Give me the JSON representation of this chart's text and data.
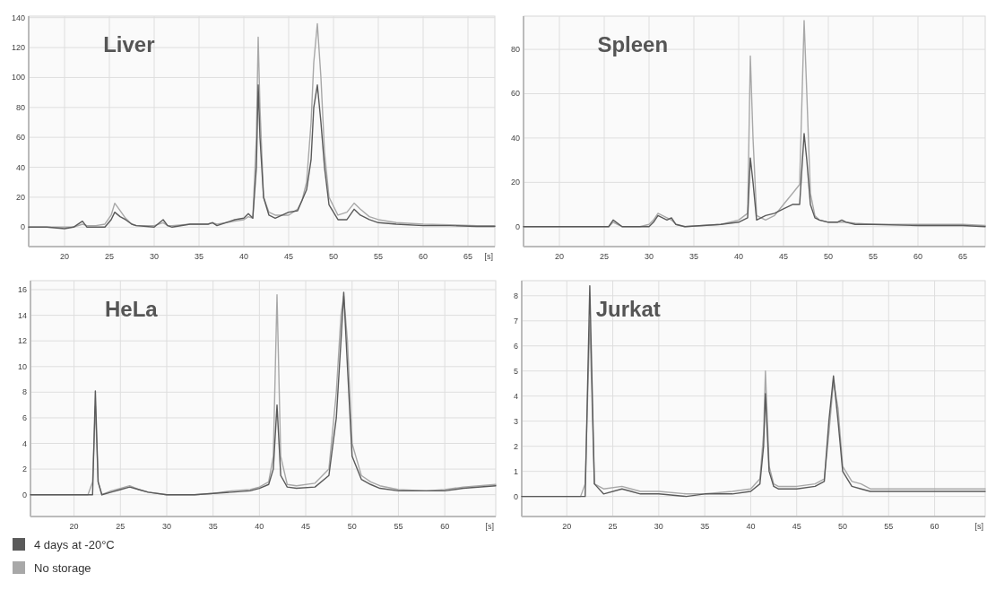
{
  "chart_data": [
    {
      "type": "line",
      "title": "Liver",
      "grid": true,
      "xlim": [
        16,
        68
      ],
      "ylim": [
        -13,
        141
      ],
      "xlabel": "[s]",
      "xticks": [
        20,
        25,
        30,
        35,
        40,
        45,
        50,
        55,
        60,
        65
      ],
      "yticks": [
        0,
        20,
        40,
        60,
        80,
        100,
        120,
        140
      ],
      "x": [
        16,
        18,
        20,
        21,
        22,
        22.5,
        23.5,
        24.5,
        25.2,
        25.6,
        26.2,
        26.8,
        27.5,
        28,
        30,
        31,
        31.5,
        32,
        34,
        36,
        36.5,
        37,
        39,
        40,
        40.5,
        41,
        41.4,
        41.6,
        41.8,
        42.2,
        42.8,
        43.5,
        45,
        46,
        46.5,
        47,
        47.5,
        47.8,
        48.2,
        48.6,
        49,
        49.5,
        50.5,
        51.5,
        52.3,
        53,
        54,
        55,
        57,
        60,
        63,
        66,
        68
      ],
      "series": [
        {
          "color": "#a8a8a8",
          "values": [
            0,
            0,
            0,
            0,
            2,
            1,
            1,
            2,
            8,
            16,
            11,
            6,
            2,
            1,
            1,
            3,
            1,
            1,
            2,
            2,
            3,
            2,
            4,
            5,
            7,
            6,
            60,
            127,
            80,
            20,
            10,
            8,
            8,
            12,
            18,
            30,
            70,
            110,
            136,
            100,
            50,
            20,
            8,
            10,
            16,
            12,
            7,
            5,
            3,
            2,
            1.5,
            1,
            1
          ]
        },
        {
          "color": "#5a5a5a",
          "values": [
            0,
            0,
            -1,
            0,
            4,
            0,
            0,
            0,
            5,
            10,
            7,
            5,
            2,
            1,
            0,
            5,
            1,
            0,
            2,
            2,
            3,
            1,
            5,
            6,
            9,
            6,
            40,
            95,
            60,
            20,
            8,
            6,
            10,
            11,
            18,
            25,
            45,
            80,
            95,
            70,
            40,
            15,
            5,
            5,
            12,
            8,
            5,
            3,
            2,
            1,
            1,
            0.5,
            0.5
          ]
        }
      ]
    },
    {
      "type": "line",
      "title": "Spleen",
      "grid": true,
      "xlim": [
        16,
        67.5
      ],
      "ylim": [
        -9,
        95
      ],
      "xticks": [
        20,
        25,
        30,
        35,
        40,
        45,
        50,
        55,
        60,
        65
      ],
      "yticks": [
        0,
        20,
        40,
        60,
        80
      ],
      "x": [
        16,
        18,
        20,
        24,
        25.5,
        26,
        27,
        29,
        30,
        30.5,
        31,
        32,
        32.5,
        33,
        34,
        36,
        38,
        40,
        41,
        41.3,
        41.6,
        42,
        43,
        44,
        45,
        46,
        46.8,
        47.3,
        47.6,
        48,
        48.5,
        49,
        50,
        51,
        51.5,
        52,
        53,
        55,
        60,
        65,
        67.5
      ],
      "series": [
        {
          "color": "#a8a8a8",
          "values": [
            0,
            0,
            0,
            0,
            0,
            2,
            0,
            0,
            1,
            3,
            6,
            4,
            3,
            1,
            0,
            0.5,
            1,
            3,
            6,
            77,
            40,
            5,
            3,
            5,
            10,
            15,
            19,
            93,
            60,
            15,
            5,
            3,
            2,
            2,
            2,
            2,
            1.5,
            1,
            1,
            1,
            0.5
          ]
        },
        {
          "color": "#5a5a5a",
          "values": [
            0,
            0,
            0,
            0,
            0,
            3,
            0,
            0,
            0,
            2,
            5,
            3,
            4,
            1,
            0,
            0.5,
            1,
            2,
            4,
            31,
            20,
            3,
            5,
            6,
            8,
            10,
            10,
            42,
            30,
            10,
            4,
            3,
            2,
            2,
            3,
            2,
            1,
            1,
            0.5,
            0.5,
            0
          ]
        }
      ]
    },
    {
      "type": "line",
      "title": "HeLa",
      "grid": true,
      "legend": "bottom left",
      "xlim": [
        15.3,
        65.5
      ],
      "ylim": [
        -1.7,
        16.7
      ],
      "xlabel": "[s]",
      "xticks": [
        20,
        25,
        30,
        35,
        40,
        45,
        50,
        55,
        60
      ],
      "yticks": [
        0,
        2,
        4,
        6,
        8,
        10,
        12,
        14,
        16
      ],
      "x": [
        15.3,
        18,
        20,
        21.5,
        22,
        22.3,
        22.6,
        23,
        24,
        25,
        26,
        27,
        28,
        30,
        33,
        35,
        37,
        39,
        40,
        41,
        41.5,
        41.9,
        42.3,
        43,
        44,
        46,
        47.5,
        48.3,
        48.8,
        49.1,
        49.5,
        50,
        51,
        52,
        53,
        55,
        58,
        60,
        62,
        65.5
      ],
      "series": [
        {
          "name": "No storage",
          "color": "#a8a8a8",
          "values": [
            0,
            0,
            0,
            0,
            1,
            6.9,
            1,
            0,
            0.3,
            0.5,
            0.7,
            0.4,
            0.2,
            0,
            0,
            0.1,
            0.3,
            0.4,
            0.6,
            1,
            3,
            15.6,
            3,
            0.8,
            0.7,
            0.9,
            2,
            8,
            14,
            15.5,
            12,
            4,
            1.5,
            1,
            0.7,
            0.4,
            0.3,
            0.4,
            0.6,
            0.8
          ]
        },
        {
          "name": "4 days at -20°C",
          "color": "#5a5a5a",
          "values": [
            0,
            0,
            0,
            0,
            0,
            8.1,
            1,
            0,
            0.2,
            0.4,
            0.6,
            0.4,
            0.2,
            0,
            0,
            0.1,
            0.2,
            0.3,
            0.5,
            0.8,
            2,
            7,
            1.5,
            0.6,
            0.5,
            0.6,
            1.5,
            6,
            12,
            15.8,
            10,
            3,
            1.2,
            0.8,
            0.5,
            0.3,
            0.3,
            0.3,
            0.5,
            0.7
          ]
        }
      ]
    },
    {
      "type": "line",
      "title": "Jurkat",
      "grid": true,
      "xlim": [
        15.1,
        65.5
      ],
      "ylim": [
        -0.8,
        8.6
      ],
      "xlabel": "[s]",
      "xticks": [
        20,
        25,
        30,
        35,
        40,
        45,
        50,
        55,
        60
      ],
      "yticks": [
        0,
        1,
        2,
        3,
        4,
        5,
        6,
        7,
        8
      ],
      "x": [
        15.1,
        18,
        20,
        21.5,
        22,
        22.5,
        23,
        24,
        26,
        27,
        28,
        30,
        33,
        35,
        38,
        40,
        41,
        41.4,
        41.6,
        42,
        42.5,
        43,
        45,
        47,
        48,
        48.5,
        49,
        49.5,
        50,
        51,
        52,
        53,
        55,
        58,
        60,
        63,
        65.5
      ],
      "series": [
        {
          "color": "#a8a8a8",
          "values": [
            0,
            0,
            0,
            0,
            0.5,
            7,
            0.5,
            0.3,
            0.4,
            0.3,
            0.2,
            0.2,
            0.1,
            0.1,
            0.2,
            0.3,
            0.7,
            2.5,
            5,
            1.2,
            0.5,
            0.4,
            0.4,
            0.5,
            0.7,
            2.5,
            4.6,
            3.5,
            1.2,
            0.6,
            0.5,
            0.3,
            0.3,
            0.3,
            0.3,
            0.3,
            0.3
          ]
        },
        {
          "color": "#5a5a5a",
          "values": [
            0,
            0,
            0,
            0,
            0,
            8.4,
            0.5,
            0.1,
            0.3,
            0.2,
            0.1,
            0.1,
            0,
            0.1,
            0.1,
            0.2,
            0.5,
            2,
            4.1,
            1,
            0.4,
            0.3,
            0.3,
            0.4,
            0.6,
            3,
            4.8,
            3,
            1,
            0.4,
            0.3,
            0.2,
            0.2,
            0.2,
            0.2,
            0.2,
            0.2
          ]
        }
      ]
    }
  ]
}
